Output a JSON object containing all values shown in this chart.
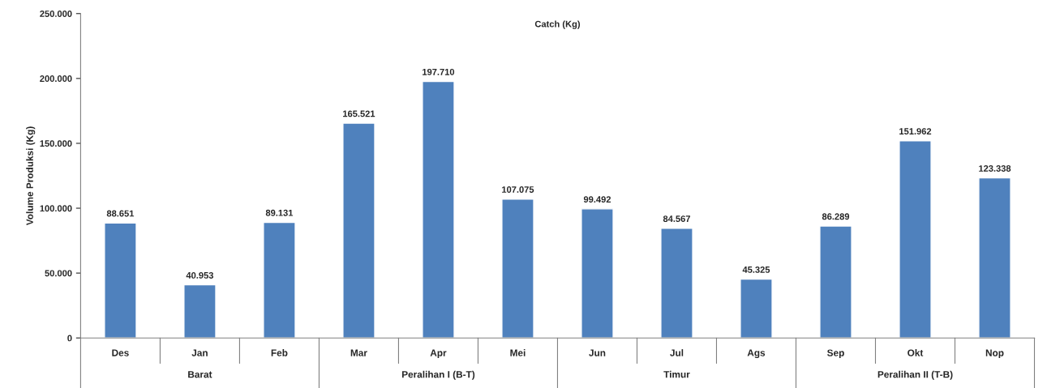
{
  "chart_data": {
    "type": "bar",
    "title": "Catch (Kg)",
    "ylabel": "Volume Produksi (Kg)",
    "categories": [
      "Des",
      "Jan",
      "Feb",
      "Mar",
      "Apr",
      "Mei",
      "Jun",
      "Jul",
      "Ags",
      "Sep",
      "Okt",
      "Nop"
    ],
    "values": [
      88651,
      40953,
      89131,
      165521,
      197710,
      107075,
      99492,
      84567,
      45325,
      86289,
      151962,
      123338
    ],
    "value_labels": [
      "88.651",
      "40.953",
      "89.131",
      "165.521",
      "197.710",
      "107.075",
      "99.492",
      "84.567",
      "45.325",
      "86.289",
      "151.962",
      "123.338"
    ],
    "color": "#4f81bd",
    "ylim": [
      0,
      250000
    ],
    "yticks": [
      {
        "value": 0,
        "label": "0"
      },
      {
        "value": 50000,
        "label": "50.000"
      },
      {
        "value": 100000,
        "label": "100.000"
      },
      {
        "value": 150000,
        "label": "150.000"
      },
      {
        "value": 200000,
        "label": "200.000"
      },
      {
        "value": 250000,
        "label": "250.000"
      }
    ],
    "annotations": [
      "Barat",
      "Peralihan I (B-T)",
      "Timur",
      "Peralihan II (T-B)"
    ],
    "grid": false,
    "legend": false
  }
}
